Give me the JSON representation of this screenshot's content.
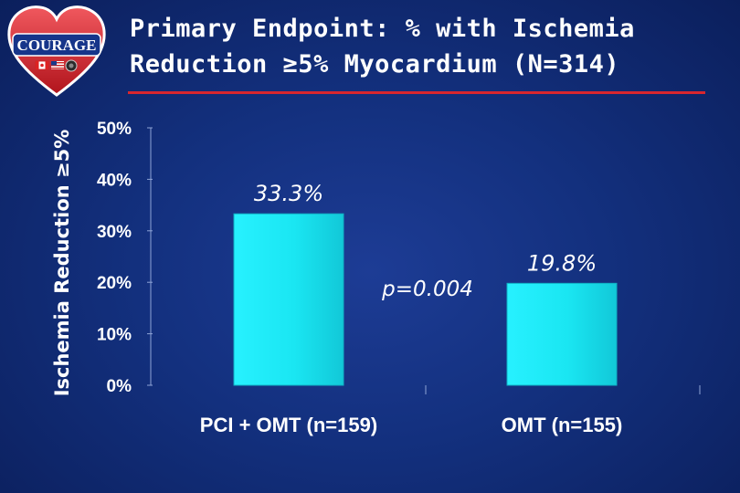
{
  "logo": {
    "text": "COURAGE"
  },
  "title": {
    "line1": "Primary Endpoint: % with Ischemia",
    "line2": "Reduction ≥5% Myocardium (N=314)"
  },
  "colors": {
    "background": "#13307e",
    "bar": "#19e3ef",
    "title_rule": "#d8262e"
  },
  "chart_data": {
    "type": "bar",
    "title": "Primary Endpoint: % with Ischemia Reduction ≥5% Myocardium (N=314)",
    "ylabel": "Ischemia Reduction ≥5%",
    "xlabel": "",
    "ylim": [
      0,
      50
    ],
    "yticks": [
      "0%",
      "10%",
      "20%",
      "30%",
      "40%",
      "50%"
    ],
    "categories": [
      "PCI + OMT (n=159)",
      "OMT (n=155)"
    ],
    "values": [
      33.3,
      19.8
    ],
    "data_labels": [
      "33.3%",
      "19.8%"
    ],
    "annotations": [
      "p=0.004"
    ],
    "grid": false,
    "legend": "none"
  }
}
